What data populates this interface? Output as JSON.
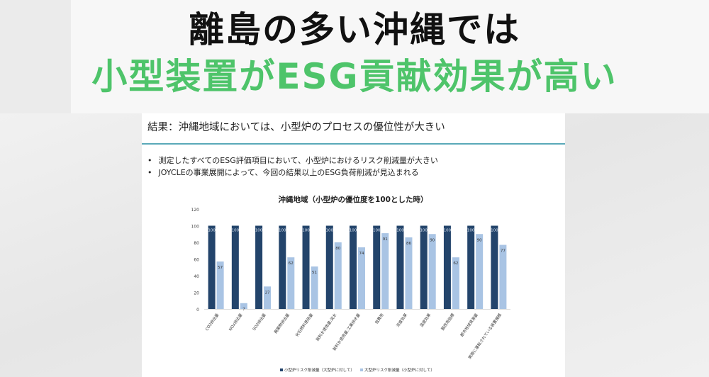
{
  "header": {
    "line1": "離島の多い沖縄では",
    "line2": "小型装置がESG貢献効果が高い"
  },
  "slide": {
    "heading": "結果：沖縄地域においては、小型炉のプロセスの優位性が大きい",
    "bullets": [
      "測定したすべてのESG評価項目において、小型炉におけるリスク削減量が大きい",
      "JOYCLEの事業展開によって、今回の結果以上のESG負荷削減が見込まれる"
    ]
  },
  "colors": {
    "dark": "#23446b",
    "light": "#a9c4e4",
    "accent": "#4ec46a"
  },
  "chart_data": {
    "type": "bar",
    "title": "沖縄地域（小型炉の優位度を100とした時）",
    "categories": [
      "CO2排出量",
      "NOx排出量",
      "SO2排出量",
      "廃棄物排出量",
      "化石燃料使用量",
      "飲料水使用量:淡水",
      "飲料水使用量:工業排水量",
      "低費用",
      "深度効果",
      "温度効果",
      "酸性雨指標",
      "都市地域資源量",
      "実際に運転されている装置規模"
    ],
    "ylim": [
      0,
      120
    ],
    "yticks": [
      0,
      20,
      40,
      60,
      80,
      100,
      120
    ],
    "grid": false,
    "legend_position": "bottom",
    "series": [
      {
        "name": "小型炉リスク削減量（大型炉に対して）",
        "values": [
          100,
          100,
          100,
          100,
          100,
          100,
          100,
          100,
          100,
          100,
          100,
          100,
          100
        ]
      },
      {
        "name": "大型炉リスク削減量（小型炉に対して）",
        "values": [
          57,
          7,
          27,
          62,
          51,
          80,
          74,
          91,
          86,
          90,
          62,
          90,
          77
        ]
      }
    ]
  }
}
